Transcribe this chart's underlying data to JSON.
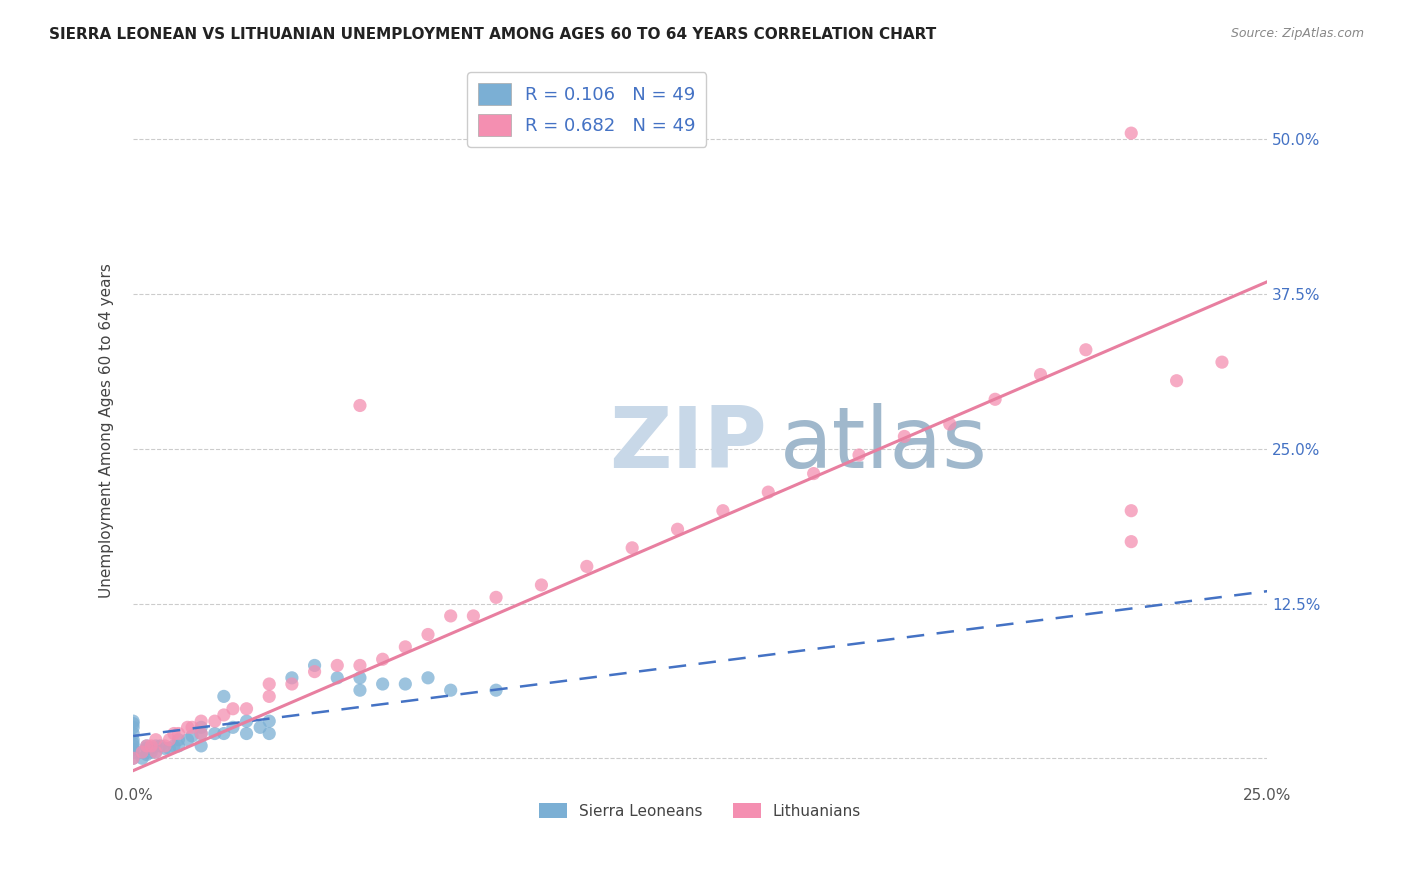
{
  "title": "SIERRA LEONEAN VS LITHUANIAN UNEMPLOYMENT AMONG AGES 60 TO 64 YEARS CORRELATION CHART",
  "source": "Source: ZipAtlas.com",
  "ylabel": "Unemployment Among Ages 60 to 64 years",
  "xlim": [
    0.0,
    0.25
  ],
  "ylim": [
    -0.02,
    0.55
  ],
  "xticks": [
    0.0,
    0.05,
    0.1,
    0.15,
    0.2,
    0.25
  ],
  "xticklabels": [
    "0.0%",
    "",
    "",
    "",
    "",
    "25.0%"
  ],
  "ytick_positions": [
    0.0,
    0.125,
    0.25,
    0.375,
    0.5
  ],
  "yticklabels": [
    "",
    "12.5%",
    "25.0%",
    "37.5%",
    "50.0%"
  ],
  "sierra_color": "#7bafd4",
  "lithuanian_color": "#f48fb1",
  "sierra_line_color": "#4472c4",
  "lithuanian_line_color": "#e87fa0",
  "watermark_zip_color": "#c8d8e8",
  "watermark_atlas_color": "#a0b8cc",
  "sierra_R": 0.106,
  "lithuanian_R": 0.682,
  "N": 49,
  "sierra_x": [
    0.0,
    0.0,
    0.0,
    0.0,
    0.0,
    0.0,
    0.0,
    0.0,
    0.0,
    0.0,
    0.002,
    0.002,
    0.003,
    0.003,
    0.003,
    0.004,
    0.004,
    0.005,
    0.005,
    0.006,
    0.007,
    0.008,
    0.009,
    0.01,
    0.01,
    0.012,
    0.013,
    0.015,
    0.015,
    0.015,
    0.018,
    0.02,
    0.02,
    0.022,
    0.025,
    0.025,
    0.028,
    0.03,
    0.03,
    0.035,
    0.04,
    0.045,
    0.05,
    0.05,
    0.055,
    0.06,
    0.065,
    0.07,
    0.08
  ],
  "sierra_y": [
    0.0,
    0.005,
    0.007,
    0.01,
    0.012,
    0.015,
    0.02,
    0.025,
    0.028,
    0.03,
    0.0,
    0.005,
    0.003,
    0.008,
    0.01,
    0.005,
    0.008,
    0.005,
    0.01,
    0.01,
    0.008,
    0.008,
    0.01,
    0.01,
    0.015,
    0.015,
    0.018,
    0.01,
    0.02,
    0.025,
    0.02,
    0.02,
    0.05,
    0.025,
    0.02,
    0.03,
    0.025,
    0.02,
    0.03,
    0.065,
    0.075,
    0.065,
    0.055,
    0.065,
    0.06,
    0.06,
    0.065,
    0.055,
    0.055
  ],
  "lithuanian_x": [
    0.0,
    0.002,
    0.003,
    0.004,
    0.005,
    0.005,
    0.007,
    0.008,
    0.009,
    0.01,
    0.012,
    0.013,
    0.015,
    0.015,
    0.018,
    0.02,
    0.022,
    0.025,
    0.03,
    0.03,
    0.035,
    0.04,
    0.045,
    0.05,
    0.055,
    0.06,
    0.065,
    0.07,
    0.075,
    0.08,
    0.09,
    0.1,
    0.11,
    0.12,
    0.13,
    0.14,
    0.15,
    0.16,
    0.17,
    0.18,
    0.19,
    0.2,
    0.21,
    0.22,
    0.22,
    0.23,
    0.24,
    0.22,
    0.05
  ],
  "lithuanian_y": [
    0.0,
    0.005,
    0.01,
    0.01,
    0.005,
    0.015,
    0.01,
    0.015,
    0.02,
    0.02,
    0.025,
    0.025,
    0.02,
    0.03,
    0.03,
    0.035,
    0.04,
    0.04,
    0.05,
    0.06,
    0.06,
    0.07,
    0.075,
    0.075,
    0.08,
    0.09,
    0.1,
    0.115,
    0.115,
    0.13,
    0.14,
    0.155,
    0.17,
    0.185,
    0.2,
    0.215,
    0.23,
    0.245,
    0.26,
    0.27,
    0.29,
    0.31,
    0.33,
    0.175,
    0.2,
    0.305,
    0.32,
    0.505,
    0.285
  ],
  "sierra_line_x": [
    0.0,
    0.25
  ],
  "sierra_line_y": [
    0.018,
    0.135
  ],
  "lithuanian_line_x": [
    0.0,
    0.25
  ],
  "lithuanian_line_y": [
    -0.01,
    0.385
  ]
}
